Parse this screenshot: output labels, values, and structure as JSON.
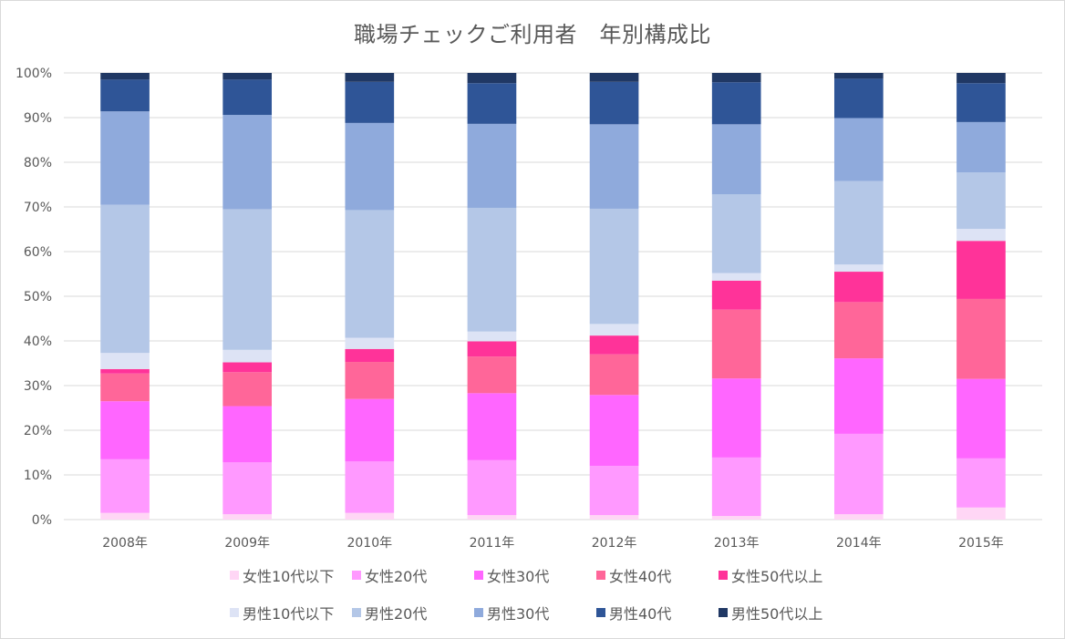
{
  "chart_data": {
    "type": "bar",
    "stacked": true,
    "normalized": true,
    "title": "職場チェックご利用者　年別構成比",
    "categories": [
      "2008年",
      "2009年",
      "2010年",
      "2011年",
      "2012年",
      "2013年",
      "2014年",
      "2015年"
    ],
    "y_ticks": [
      "0%",
      "10%",
      "20%",
      "30%",
      "40%",
      "50%",
      "60%",
      "70%",
      "80%",
      "90%",
      "100%"
    ],
    "ylim": [
      0,
      100
    ],
    "grid": true,
    "legend_position": "bottom",
    "series": [
      {
        "name": "女性10代以下",
        "color": "#ffd6f5",
        "values": [
          1.5,
          1.2,
          1.5,
          1.0,
          1.0,
          0.8,
          1.2,
          2.7
        ]
      },
      {
        "name": "女性20代",
        "color": "#ff99ff",
        "values": [
          12.0,
          11.6,
          11.5,
          12.3,
          11.0,
          13.1,
          18.0,
          11.0
        ]
      },
      {
        "name": "女性30代",
        "color": "#ff66ff",
        "values": [
          13.0,
          12.6,
          14.0,
          15.0,
          15.9,
          17.7,
          16.9,
          17.8
        ]
      },
      {
        "name": "女性40代",
        "color": "#ff6699",
        "values": [
          6.2,
          7.6,
          8.3,
          8.2,
          9.1,
          15.4,
          12.6,
          17.9
        ]
      },
      {
        "name": "女性50代以上",
        "color": "#ff3399",
        "values": [
          1.0,
          2.2,
          2.9,
          3.4,
          4.2,
          6.5,
          6.8,
          13.0
        ]
      },
      {
        "name": "男性10代以下",
        "color": "#dde3f5",
        "values": [
          3.6,
          2.8,
          2.5,
          2.2,
          2.6,
          1.7,
          1.6,
          2.7
        ]
      },
      {
        "name": "男性20代",
        "color": "#b4c7e7",
        "values": [
          33.2,
          31.5,
          28.6,
          27.7,
          25.8,
          17.6,
          18.7,
          12.6
        ]
      },
      {
        "name": "男性30代",
        "color": "#8faadc",
        "values": [
          20.9,
          21.1,
          19.5,
          18.8,
          18.9,
          15.7,
          14.1,
          11.3
        ]
      },
      {
        "name": "男性40代",
        "color": "#2f5597",
        "values": [
          7.1,
          7.9,
          9.2,
          9.1,
          9.5,
          9.4,
          8.8,
          8.7
        ]
      },
      {
        "name": "男性50代以上",
        "color": "#203864",
        "values": [
          1.5,
          1.5,
          2.0,
          2.3,
          2.0,
          2.1,
          1.3,
          2.3
        ]
      }
    ]
  }
}
